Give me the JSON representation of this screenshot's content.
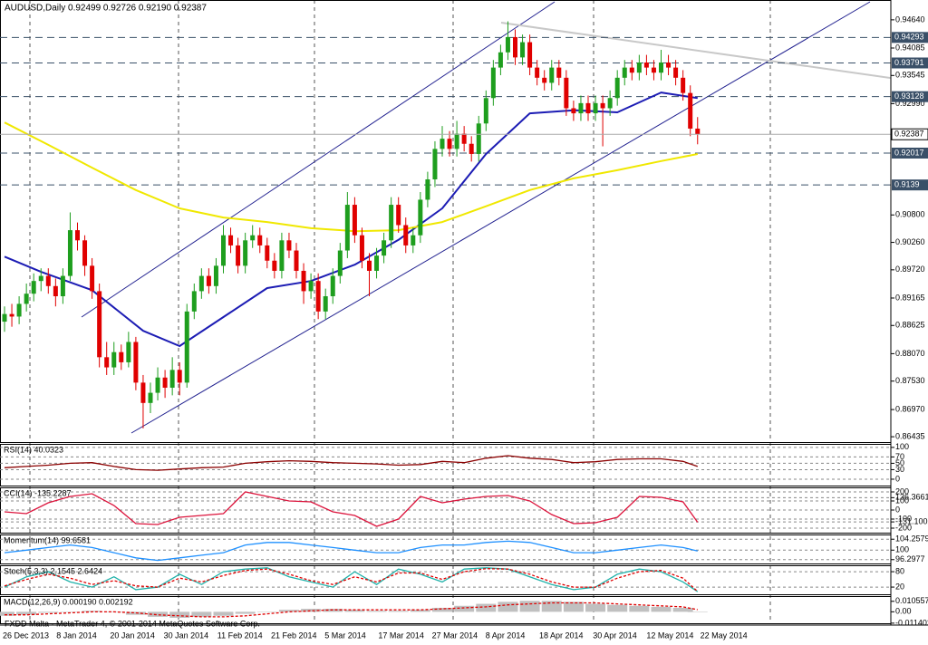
{
  "chart_data": [
    {
      "type": "candlestick",
      "title": "AUDUSD,Daily 0.92499 0.92726 0.92190 0.92387",
      "up_color": "#1e9e1e",
      "down_color": "#e00000",
      "ylim": [
        0.8633,
        0.9503
      ],
      "yticks": [
        {
          "value": 0.9464,
          "label": "0.94640"
        },
        0.94085,
        0.93545,
        {
          "value": 0.9299,
          "label": "0.92990"
        },
        {
          "value": 0.908,
          "label": "0.90800"
        },
        {
          "value": 0.9026,
          "label": "0.90260"
        },
        {
          "value": 0.8972,
          "label": "0.89720"
        },
        0.89165,
        0.88625,
        {
          "value": 0.8807,
          "label": "0.88070"
        },
        {
          "value": 0.8753,
          "label": "0.87530"
        },
        {
          "value": 0.8697,
          "label": "0.86970"
        },
        0.86435
      ],
      "levels": [
        0.94293,
        0.93791,
        0.93128,
        0.92017,
        0.9139
      ],
      "level_color": "#3a5068",
      "xtick_labels": [
        "26 Dec 2013",
        "8 Jan 2014",
        "20 Jan 2014",
        "30 Jan 2014",
        "11 Feb 2014",
        "21 Feb 2014",
        "5 Mar 2014",
        "17 Mar 2014",
        "27 Mar 2014",
        "8 Apr 2014",
        "18 Apr 2014",
        "30 Apr 2014",
        "12 May 2014",
        "22 May 2014"
      ],
      "lines": [
        {
          "color": "#1c1cb4",
          "x": [
            0,
            5,
            12,
            19,
            24,
            30,
            36,
            42,
            48,
            54,
            60,
            66,
            72,
            78,
            84,
            90,
            95
          ],
          "values": [
            0.8998,
            0.8968,
            0.8932,
            0.8852,
            0.8822,
            0.8879,
            0.8936,
            0.895,
            0.8982,
            0.9031,
            0.9093,
            0.92,
            0.928,
            0.9286,
            0.9282,
            0.9321,
            0.931
          ]
        },
        {
          "color": "#f0e800",
          "x": [
            0,
            6,
            12,
            18,
            24,
            30,
            36,
            42,
            48,
            54,
            60,
            66,
            72,
            78,
            84,
            90,
            95
          ],
          "values": [
            0.9262,
            0.9218,
            0.9173,
            0.9129,
            0.9093,
            0.9075,
            0.9066,
            0.9054,
            0.9048,
            0.905,
            0.9066,
            0.9097,
            0.9129,
            0.9152,
            0.9168,
            0.9186,
            0.92
          ]
        }
      ],
      "candles": [
        [
          0.887,
          0.89,
          0.885,
          0.8885
        ],
        [
          0.8885,
          0.8905,
          0.886,
          0.888
        ],
        [
          0.888,
          0.892,
          0.8865,
          0.8905
        ],
        [
          0.8905,
          0.8945,
          0.889,
          0.8925
        ],
        [
          0.8925,
          0.8965,
          0.891,
          0.895
        ],
        [
          0.895,
          0.8975,
          0.893,
          0.896
        ],
        [
          0.896,
          0.8975,
          0.8925,
          0.894
        ],
        [
          0.894,
          0.8955,
          0.89,
          0.892
        ],
        [
          0.892,
          0.8975,
          0.8905,
          0.896
        ],
        [
          0.896,
          0.9085,
          0.895,
          0.905
        ],
        [
          0.905,
          0.9065,
          0.901,
          0.903
        ],
        [
          0.903,
          0.904,
          0.896,
          0.898
        ],
        [
          0.898,
          0.8995,
          0.8915,
          0.893
        ],
        [
          0.893,
          0.8945,
          0.878,
          0.88
        ],
        [
          0.88,
          0.883,
          0.8765,
          0.878
        ],
        [
          0.878,
          0.883,
          0.8765,
          0.881
        ],
        [
          0.881,
          0.8825,
          0.8775,
          0.879
        ],
        [
          0.879,
          0.885,
          0.878,
          0.883
        ],
        [
          0.883,
          0.884,
          0.8735,
          0.875
        ],
        [
          0.875,
          0.8765,
          0.866,
          0.871
        ],
        [
          0.871,
          0.875,
          0.869,
          0.873
        ],
        [
          0.873,
          0.878,
          0.8715,
          0.876
        ],
        [
          0.876,
          0.8775,
          0.872,
          0.874
        ],
        [
          0.874,
          0.88,
          0.8725,
          0.8775
        ],
        [
          0.8775,
          0.879,
          0.8725,
          0.875
        ],
        [
          0.875,
          0.8905,
          0.874,
          0.889
        ],
        [
          0.889,
          0.8945,
          0.8875,
          0.893
        ],
        [
          0.893,
          0.8975,
          0.8915,
          0.896
        ],
        [
          0.896,
          0.8975,
          0.8925,
          0.894
        ],
        [
          0.894,
          0.8995,
          0.8925,
          0.898
        ],
        [
          0.898,
          0.906,
          0.8965,
          0.904
        ],
        [
          0.904,
          0.9055,
          0.9005,
          0.902
        ],
        [
          0.902,
          0.9035,
          0.8965,
          0.898
        ],
        [
          0.898,
          0.9045,
          0.8965,
          0.903
        ],
        [
          0.903,
          0.906,
          0.9015,
          0.904
        ],
        [
          0.904,
          0.9055,
          0.9005,
          0.902
        ],
        [
          0.902,
          0.9035,
          0.8975,
          0.899
        ],
        [
          0.899,
          0.9005,
          0.8955,
          0.897
        ],
        [
          0.897,
          0.9045,
          0.8955,
          0.903
        ],
        [
          0.903,
          0.9045,
          0.8995,
          0.901
        ],
        [
          0.901,
          0.9025,
          0.8955,
          0.897
        ],
        [
          0.897,
          0.8985,
          0.8905,
          0.893
        ],
        [
          0.893,
          0.8965,
          0.8915,
          0.895
        ],
        [
          0.895,
          0.8965,
          0.8875,
          0.889
        ],
        [
          0.889,
          0.8935,
          0.8875,
          0.892
        ],
        [
          0.892,
          0.8975,
          0.8905,
          0.896
        ],
        [
          0.896,
          0.9025,
          0.8945,
          0.901
        ],
        [
          0.901,
          0.9125,
          0.8995,
          0.91
        ],
        [
          0.91,
          0.9115,
          0.9025,
          0.904
        ],
        [
          0.904,
          0.9055,
          0.8975,
          0.899
        ],
        [
          0.899,
          0.9005,
          0.892,
          0.897
        ],
        [
          0.897,
          0.9015,
          0.8955,
          0.9
        ],
        [
          0.9,
          0.9045,
          0.8985,
          0.903
        ],
        [
          0.903,
          0.9115,
          0.9015,
          0.91
        ],
        [
          0.91,
          0.9115,
          0.9045,
          0.906
        ],
        [
          0.906,
          0.9075,
          0.9005,
          0.902
        ],
        [
          0.902,
          0.9055,
          0.9005,
          0.904
        ],
        [
          0.904,
          0.9125,
          0.9025,
          0.911
        ],
        [
          0.911,
          0.9165,
          0.9095,
          0.915
        ],
        [
          0.915,
          0.9225,
          0.9135,
          0.921
        ],
        [
          0.921,
          0.9255,
          0.9195,
          0.923
        ],
        [
          0.923,
          0.9245,
          0.9195,
          0.921
        ],
        [
          0.921,
          0.9265,
          0.9195,
          0.924
        ],
        [
          0.924,
          0.9255,
          0.9205,
          0.922
        ],
        [
          0.922,
          0.9235,
          0.9185,
          0.92
        ],
        [
          0.92,
          0.9275,
          0.9185,
          0.926
        ],
        [
          0.926,
          0.9325,
          0.9245,
          0.931
        ],
        [
          0.931,
          0.9385,
          0.9295,
          0.937
        ],
        [
          0.937,
          0.9415,
          0.9355,
          0.94
        ],
        [
          0.94,
          0.9461,
          0.9385,
          0.943
        ],
        [
          0.943,
          0.9445,
          0.9375,
          0.939
        ],
        [
          0.939,
          0.9435,
          0.9375,
          0.942
        ],
        [
          0.942,
          0.9435,
          0.9355,
          0.937
        ],
        [
          0.937,
          0.9385,
          0.9335,
          0.935
        ],
        [
          0.935,
          0.9365,
          0.9325,
          0.934
        ],
        [
          0.934,
          0.9385,
          0.9325,
          0.937
        ],
        [
          0.937,
          0.9385,
          0.9335,
          0.935
        ],
        [
          0.935,
          0.9365,
          0.9275,
          0.929
        ],
        [
          0.929,
          0.9305,
          0.9265,
          0.928
        ],
        [
          0.928,
          0.9315,
          0.9265,
          0.93
        ],
        [
          0.93,
          0.9315,
          0.9265,
          0.928
        ],
        [
          0.928,
          0.9315,
          0.9265,
          0.93
        ],
        [
          0.93,
          0.9315,
          0.9215,
          0.929
        ],
        [
          0.929,
          0.9325,
          0.9275,
          0.931
        ],
        [
          0.931,
          0.9365,
          0.9295,
          0.935
        ],
        [
          0.935,
          0.9385,
          0.9335,
          0.937
        ],
        [
          0.937,
          0.9385,
          0.9345,
          0.936
        ],
        [
          0.936,
          0.9395,
          0.9345,
          0.938
        ],
        [
          0.938,
          0.9395,
          0.9355,
          0.937
        ],
        [
          0.937,
          0.9385,
          0.9345,
          0.936
        ],
        [
          0.936,
          0.9405,
          0.9345,
          0.938
        ],
        [
          0.938,
          0.9395,
          0.9355,
          0.937
        ],
        [
          0.937,
          0.9385,
          0.9335,
          0.935
        ],
        [
          0.935,
          0.9365,
          0.9305,
          0.932
        ],
        [
          0.932,
          0.9335,
          0.9235,
          0.92499
        ],
        [
          0.92499,
          0.92726,
          0.9219,
          0.92387
        ]
      ]
    },
    {
      "type": "line",
      "title": "RSI(14) 40.0323",
      "ylim": [
        -20,
        111
      ],
      "yticks": [
        100,
        70,
        50,
        30,
        0
      ],
      "x": [
        0,
        3,
        6,
        9,
        12,
        15,
        18,
        21,
        24,
        27,
        30,
        33,
        36,
        39,
        42,
        45,
        48,
        51,
        54,
        57,
        60,
        63,
        66,
        69,
        72,
        75,
        78,
        81,
        84,
        87,
        90,
        93,
        95
      ],
      "series": [
        {
          "color": "#8b0000",
          "values": [
            36,
            40,
            44,
            50,
            52,
            40,
            30,
            28,
            32,
            36,
            38,
            50,
            55,
            58,
            56,
            52,
            50,
            48,
            44,
            46,
            56,
            52,
            66,
            74,
            66,
            62,
            52,
            55,
            62,
            64,
            64,
            56,
            40.0323
          ]
        }
      ]
    },
    {
      "type": "line",
      "title": "CCI(14) -135.2287",
      "ylim": [
        -250,
        250
      ],
      "yticks": [
        200,
        136.3661,
        100,
        0,
        -100,
        -131.1002,
        -200
      ],
      "x": [
        0,
        3,
        6,
        9,
        12,
        15,
        18,
        21,
        24,
        27,
        30,
        33,
        36,
        39,
        42,
        45,
        48,
        51,
        54,
        57,
        60,
        63,
        66,
        69,
        72,
        75,
        78,
        81,
        84,
        87,
        90,
        93,
        95
      ],
      "series": [
        {
          "color": "#dc143c",
          "values": [
            -20,
            -40,
            80,
            150,
            180,
            50,
            -150,
            -160,
            -80,
            -60,
            -40,
            200,
            150,
            100,
            90,
            -20,
            -60,
            -180,
            -100,
            150,
            80,
            120,
            150,
            160,
            100,
            -50,
            -150,
            -140,
            -80,
            150,
            140,
            90,
            -135.2287
          ]
        }
      ]
    },
    {
      "type": "line",
      "title": "Momentum(14) 99.6581",
      "ylim": [
        94.8,
        106.1
      ],
      "yticks": [
        104.2579,
        100,
        96.2977
      ],
      "x": [
        0,
        3,
        6,
        9,
        12,
        15,
        18,
        21,
        24,
        27,
        30,
        33,
        36,
        39,
        42,
        45,
        48,
        51,
        54,
        57,
        60,
        63,
        66,
        69,
        72,
        75,
        78,
        81,
        84,
        87,
        90,
        93,
        95
      ],
      "series": [
        {
          "color": "#1e90ff",
          "values": [
            99,
            100,
            101,
            102,
            101,
            99,
            97,
            96,
            97,
            98,
            99,
            102,
            103,
            103,
            102,
            101,
            100,
            99,
            99,
            101,
            102,
            102,
            103,
            103.5,
            103,
            101,
            99,
            99,
            100,
            101,
            102,
            101,
            99.6581
          ]
        }
      ]
    },
    {
      "type": "line",
      "title": "Stoch(5,3,3) 2.1545 2.6424",
      "ylim": [
        -8,
        105
      ],
      "yticks": [
        80,
        20
      ],
      "x": [
        0,
        3,
        6,
        9,
        12,
        15,
        18,
        21,
        24,
        27,
        30,
        33,
        36,
        39,
        42,
        45,
        48,
        51,
        54,
        57,
        60,
        63,
        66,
        69,
        72,
        75,
        78,
        81,
        84,
        87,
        90,
        93,
        95
      ],
      "series": [
        {
          "color": "#20b2aa",
          "values": [
            20,
            60,
            80,
            40,
            20,
            60,
            10,
            20,
            70,
            30,
            80,
            90,
            95,
            60,
            40,
            20,
            80,
            30,
            90,
            70,
            40,
            90,
            95,
            90,
            60,
            30,
            10,
            20,
            70,
            90,
            80,
            40,
            2.1545
          ]
        },
        {
          "color": "#e00000",
          "dash": true,
          "values": [
            25,
            50,
            70,
            55,
            30,
            45,
            25,
            20,
            55,
            40,
            65,
            85,
            90,
            70,
            45,
            30,
            60,
            40,
            75,
            75,
            50,
            80,
            92,
            90,
            70,
            40,
            20,
            20,
            55,
            80,
            85,
            55,
            2.6424
          ]
        }
      ]
    },
    {
      "type": "combo",
      "title": "MACD(12,26,9) 0.000190 0.002192",
      "ylim": [
        -0.0115,
        0.0158
      ],
      "yticks": [
        0.010557,
        {
          "value": 0,
          "label": "0.00"
        },
        -0.011402
      ],
      "x": [
        0,
        3,
        6,
        9,
        12,
        15,
        18,
        21,
        24,
        27,
        30,
        33,
        36,
        39,
        42,
        45,
        48,
        51,
        54,
        57,
        60,
        63,
        66,
        69,
        72,
        75,
        78,
        81,
        84,
        87,
        90,
        93,
        95
      ],
      "series": [
        {
          "color": "#c0c0c0",
          "kind": "bar",
          "values": [
            -0.004,
            -0.003,
            -0.001,
            0,
            0.001,
            0,
            -0.003,
            -0.005,
            -0.006,
            -0.005,
            -0.004,
            -0.002,
            0,
            0.002,
            0.003,
            0.003,
            0.002,
            0.001,
            0.001,
            0.002,
            0.004,
            0.006,
            0.008,
            0.01,
            0.011,
            0.011,
            0.01,
            0.008,
            0.007,
            0.006,
            0.005,
            0.004,
            0.00019
          ]
        },
        {
          "color": "#e00000",
          "kind": "line",
          "dash": true,
          "values": [
            -0.003,
            -0.003,
            -0.002,
            -0.001,
            0,
            0,
            -0.001,
            -0.003,
            -0.004,
            -0.005,
            -0.005,
            -0.004,
            -0.002,
            0,
            0.001,
            0.002,
            0.002,
            0.002,
            0.002,
            0.002,
            0.003,
            0.004,
            0.005,
            0.007,
            0.008,
            0.009,
            0.009,
            0.009,
            0.008,
            0.007,
            0.006,
            0.005,
            0.002192
          ]
        }
      ]
    }
  ],
  "footer": "FXDD Malta - MetaTrader 4, © 2001-2014 MetaQuotes Software Corp."
}
